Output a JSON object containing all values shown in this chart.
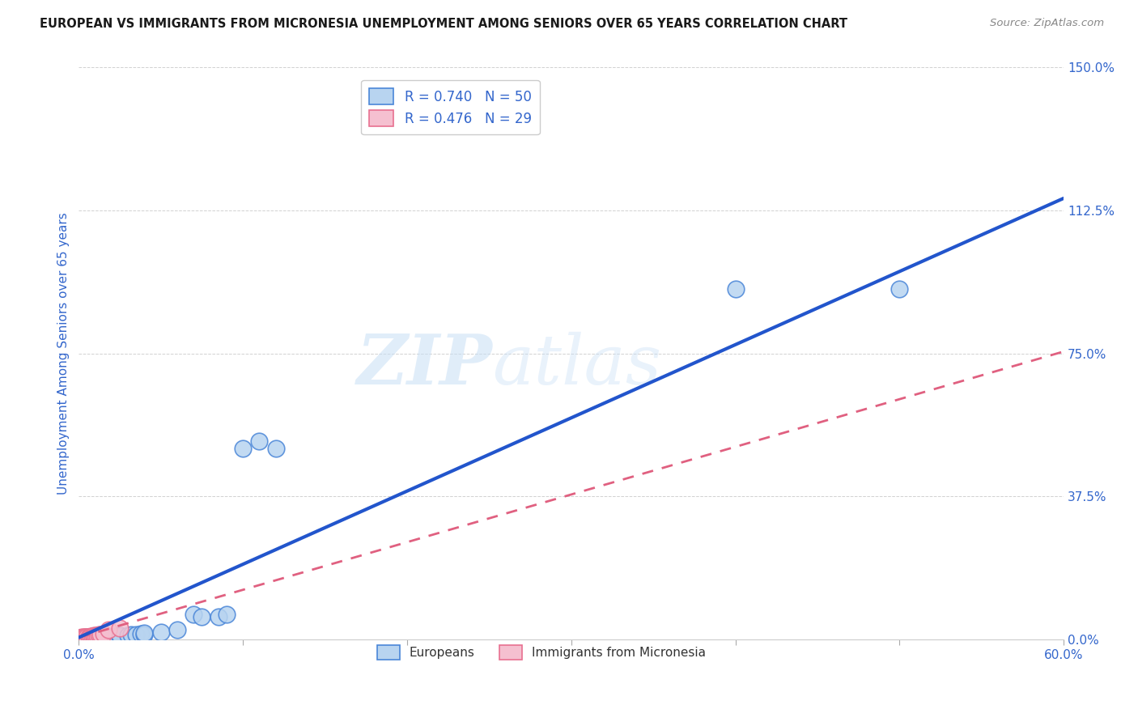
{
  "title": "EUROPEAN VS IMMIGRANTS FROM MICRONESIA UNEMPLOYMENT AMONG SENIORS OVER 65 YEARS CORRELATION CHART",
  "source": "Source: ZipAtlas.com",
  "ylabel": "Unemployment Among Seniors over 65 years",
  "xlim": [
    0.0,
    0.6
  ],
  "ylim": [
    0.0,
    1.5
  ],
  "xticks": [
    0.0,
    0.1,
    0.2,
    0.3,
    0.4,
    0.5,
    0.6
  ],
  "xticklabels": [
    "0.0%",
    "",
    "",
    "",
    "",
    "",
    "60.0%"
  ],
  "yticks": [
    0.0,
    0.375,
    0.75,
    1.125,
    1.5
  ],
  "yticklabels": [
    "0.0%",
    "37.5%",
    "75.0%",
    "112.5%",
    "150.0%"
  ],
  "european_R": 0.74,
  "european_N": 50,
  "micronesia_R": 0.476,
  "micronesia_N": 29,
  "blue_fill": "#b8d4f0",
  "blue_edge": "#4a86d8",
  "pink_fill": "#f5c0d0",
  "pink_edge": "#e87090",
  "blue_line": "#2255cc",
  "pink_line": "#e06080",
  "title_color": "#1a1a1a",
  "axis_color": "#3366cc",
  "source_color": "#888888",
  "grid_color": "#cccccc",
  "watermark_color": "#dceeff",
  "eu_trendline_slope": 1.92,
  "eu_trendline_intercept": 0.005,
  "mic_trendline_slope": 1.25,
  "mic_trendline_intercept": 0.005,
  "european_x": [
    0.002,
    0.003,
    0.003,
    0.004,
    0.004,
    0.005,
    0.005,
    0.005,
    0.006,
    0.006,
    0.007,
    0.007,
    0.008,
    0.008,
    0.009,
    0.009,
    0.01,
    0.01,
    0.01,
    0.01,
    0.01,
    0.012,
    0.012,
    0.013,
    0.014,
    0.015,
    0.015,
    0.016,
    0.018,
    0.02,
    0.022,
    0.025,
    0.025,
    0.03,
    0.032,
    0.035,
    0.038,
    0.04,
    0.04,
    0.05,
    0.06,
    0.07,
    0.075,
    0.085,
    0.09,
    0.1,
    0.11,
    0.12,
    0.4,
    0.5
  ],
  "european_y": [
    0.003,
    0.003,
    0.004,
    0.003,
    0.005,
    0.003,
    0.004,
    0.006,
    0.004,
    0.005,
    0.004,
    0.005,
    0.004,
    0.006,
    0.004,
    0.005,
    0.003,
    0.004,
    0.005,
    0.006,
    0.008,
    0.005,
    0.007,
    0.005,
    0.006,
    0.005,
    0.008,
    0.006,
    0.007,
    0.007,
    0.008,
    0.008,
    0.01,
    0.01,
    0.012,
    0.012,
    0.014,
    0.013,
    0.016,
    0.018,
    0.025,
    0.065,
    0.06,
    0.06,
    0.065,
    0.5,
    0.52,
    0.5,
    0.92,
    0.92
  ],
  "micronesia_x": [
    0.001,
    0.001,
    0.001,
    0.002,
    0.002,
    0.002,
    0.002,
    0.003,
    0.003,
    0.003,
    0.004,
    0.004,
    0.004,
    0.005,
    0.005,
    0.006,
    0.006,
    0.007,
    0.007,
    0.008,
    0.009,
    0.009,
    0.01,
    0.011,
    0.012,
    0.013,
    0.015,
    0.018,
    0.025
  ],
  "micronesia_y": [
    0.003,
    0.004,
    0.005,
    0.003,
    0.004,
    0.005,
    0.006,
    0.004,
    0.005,
    0.006,
    0.004,
    0.006,
    0.007,
    0.005,
    0.007,
    0.006,
    0.007,
    0.007,
    0.009,
    0.008,
    0.009,
    0.01,
    0.01,
    0.011,
    0.012,
    0.013,
    0.015,
    0.025,
    0.03
  ]
}
